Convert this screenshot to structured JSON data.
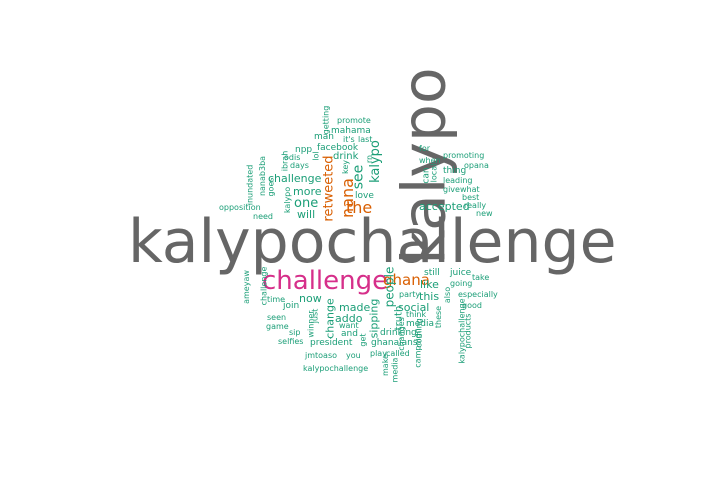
{
  "wordcloud": {
    "words": [
      {
        "text": "kalypochallenge",
        "color": "#666666"
      },
      {
        "text": "kalypo",
        "color": "#666666"
      },
      {
        "text": "challenge",
        "color": "#d62f8a"
      },
      {
        "text": "ghana",
        "color": "#d95f02"
      },
      {
        "text": "the",
        "color": "#d95f02"
      },
      {
        "text": "nana",
        "color": "#d95f02"
      },
      {
        "text": "retweeted",
        "color": "#d95f02"
      },
      {
        "text": "see",
        "color": "#1b9e77"
      },
      {
        "text": "kalypo",
        "color": "#1b9e77"
      },
      {
        "text": "accepted",
        "color": "#1b9e77"
      },
      {
        "text": "one",
        "color": "#1b9e77"
      },
      {
        "text": "more",
        "color": "#1b9e77"
      },
      {
        "text": "challenge",
        "color": "#1b9e77"
      },
      {
        "text": "will",
        "color": "#1b9e77"
      },
      {
        "text": "love",
        "color": "#1b9e77"
      },
      {
        "text": "drink",
        "color": "#1b9e77"
      },
      {
        "text": "facebook",
        "color": "#1b9e77"
      },
      {
        "text": "npp",
        "color": "#1b9e77"
      },
      {
        "text": "man",
        "color": "#1b9e77"
      },
      {
        "text": "last",
        "color": "#1b9e77"
      },
      {
        "text": "it's",
        "color": "#1b9e77"
      },
      {
        "text": "mahama",
        "color": "#1b9e77"
      },
      {
        "text": "promote",
        "color": "#1b9e77"
      },
      {
        "text": "getting",
        "color": "#1b9e77"
      },
      {
        "text": "odis",
        "color": "#1b9e77"
      },
      {
        "text": "days",
        "color": "#1b9e77"
      },
      {
        "text": "lol",
        "color": "#1b9e77"
      },
      {
        "text": "key",
        "color": "#1b9e77"
      },
      {
        "text": "rn",
        "color": "#1b9e77"
      },
      {
        "text": "ibrah",
        "color": "#1b9e77"
      },
      {
        "text": "goes",
        "color": "#1b9e77"
      },
      {
        "text": "inundated",
        "color": "#1b9e77"
      },
      {
        "text": "nanab3ba",
        "color": "#1b9e77"
      },
      {
        "text": "kalypo",
        "color": "#1b9e77"
      },
      {
        "text": "opposition",
        "color": "#1b9e77"
      },
      {
        "text": "need",
        "color": "#1b9e77"
      },
      {
        "text": "for",
        "color": "#1b9e77"
      },
      {
        "text": "when",
        "color": "#1b9e77"
      },
      {
        "text": "can",
        "color": "#1b9e77"
      },
      {
        "text": "local",
        "color": "#1b9e77"
      },
      {
        "text": "promoting",
        "color": "#1b9e77"
      },
      {
        "text": "opana",
        "color": "#1b9e77"
      },
      {
        "text": "thing",
        "color": "#1b9e77"
      },
      {
        "text": "leading",
        "color": "#1b9e77"
      },
      {
        "text": "give",
        "color": "#1b9e77"
      },
      {
        "text": "what",
        "color": "#1b9e77"
      },
      {
        "text": "best",
        "color": "#1b9e77"
      },
      {
        "text": "really",
        "color": "#1b9e77"
      },
      {
        "text": "new",
        "color": "#1b9e77"
      },
      {
        "text": "still",
        "color": "#1b9e77"
      },
      {
        "text": "juice",
        "color": "#1b9e77"
      },
      {
        "text": "take",
        "color": "#1b9e77"
      },
      {
        "text": "going",
        "color": "#1b9e77"
      },
      {
        "text": "like",
        "color": "#1b9e77"
      },
      {
        "text": "this",
        "color": "#1b9e77"
      },
      {
        "text": "party",
        "color": "#1b9e77"
      },
      {
        "text": "also",
        "color": "#1b9e77"
      },
      {
        "text": "especially",
        "color": "#1b9e77"
      },
      {
        "text": "good",
        "color": "#1b9e77"
      },
      {
        "text": "social",
        "color": "#1b9e77"
      },
      {
        "text": "think",
        "color": "#1b9e77"
      },
      {
        "text": "media",
        "color": "#1b9e77"
      },
      {
        "text": "drinking",
        "color": "#1b9e77"
      },
      {
        "text": "these",
        "color": "#1b9e77"
      },
      {
        "text": "kalypochallenge",
        "color": "#1b9e77"
      },
      {
        "text": "products",
        "color": "#1b9e77"
      },
      {
        "text": "people",
        "color": "#1b9e77"
      },
      {
        "text": "sipping",
        "color": "#1b9e77"
      },
      {
        "text": "truth",
        "color": "#1b9e77"
      },
      {
        "text": "coming",
        "color": "#1b9e77"
      },
      {
        "text": "changes",
        "color": "#1b9e77"
      },
      {
        "text": "campaign",
        "color": "#1b9e77"
      },
      {
        "text": "made",
        "color": "#1b9e77"
      },
      {
        "text": "addo",
        "color": "#1b9e77"
      },
      {
        "text": "want",
        "color": "#1b9e77"
      },
      {
        "text": "and",
        "color": "#1b9e77"
      },
      {
        "text": "ghanaians",
        "color": "#1b9e77"
      },
      {
        "text": "change",
        "color": "#1b9e77"
      },
      {
        "text": "just",
        "color": "#1b9e77"
      },
      {
        "text": "now",
        "color": "#1b9e77"
      },
      {
        "text": "join",
        "color": "#1b9e77"
      },
      {
        "text": "time",
        "color": "#1b9e77"
      },
      {
        "text": "seen",
        "color": "#1b9e77"
      },
      {
        "text": "game",
        "color": "#1b9e77"
      },
      {
        "text": "sip",
        "color": "#1b9e77"
      },
      {
        "text": "selfies",
        "color": "#1b9e77"
      },
      {
        "text": "winner",
        "color": "#1b9e77"
      },
      {
        "text": "get",
        "color": "#1b9e77"
      },
      {
        "text": "president",
        "color": "#1b9e77"
      },
      {
        "text": "jmtoaso",
        "color": "#1b9e77"
      },
      {
        "text": "you",
        "color": "#1b9e77"
      },
      {
        "text": "play",
        "color": "#1b9e77"
      },
      {
        "text": "called",
        "color": "#1b9e77"
      },
      {
        "text": "make",
        "color": "#1b9e77"
      },
      {
        "text": "media",
        "color": "#1b9e77"
      },
      {
        "text": "kalypochallenge",
        "color": "#1b9e77"
      },
      {
        "text": "ameyaw",
        "color": "#1b9e77"
      },
      {
        "text": "challenge",
        "color": "#1b9e77"
      }
    ]
  }
}
